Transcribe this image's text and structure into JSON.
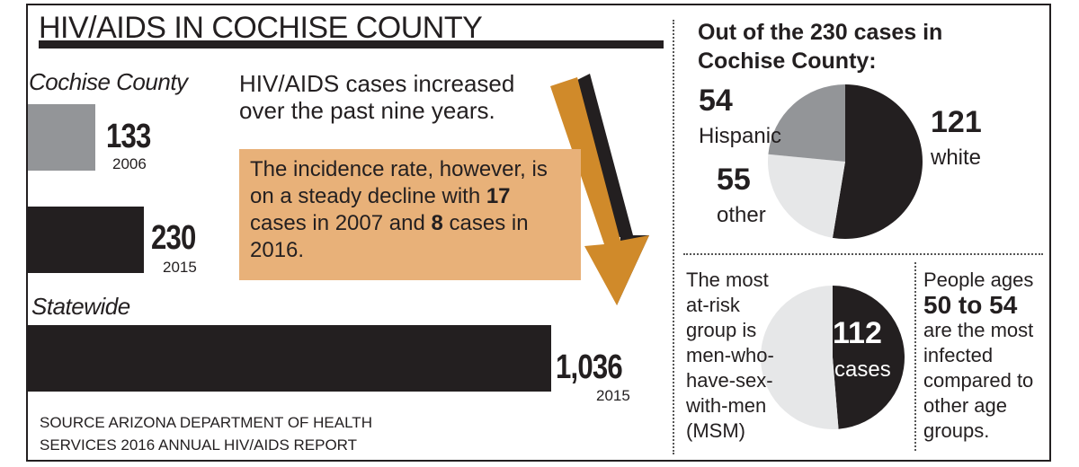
{
  "title": "HIV/AIDS IN COCHISE COUNTY",
  "colors": {
    "dark": "#231f20",
    "gray": "#939598",
    "light": "#e6e7e8",
    "callout": "#e8b179",
    "arrow": "#d08a2a"
  },
  "chart_data": [
    {
      "type": "bar",
      "orientation": "horizontal",
      "groups": [
        {
          "label": "Cochise County",
          "bars": [
            {
              "value": 133,
              "value_label": "133",
              "year": "2006",
              "color": "#939598"
            },
            {
              "value": 230,
              "value_label": "230",
              "year": "2015",
              "color": "#231f20"
            }
          ]
        },
        {
          "label": "Statewide",
          "bars": [
            {
              "value": 1036,
              "value_label": "1,036",
              "year": "2015",
              "color": "#231f20"
            }
          ]
        }
      ]
    },
    {
      "type": "pie",
      "title": "Out of the 230 cases in Cochise County:",
      "slices": [
        {
          "label": "white",
          "value": 121,
          "value_label": "121",
          "color": "#231f20"
        },
        {
          "label": "other",
          "value": 55,
          "value_label": "55",
          "color": "#e6e7e8"
        },
        {
          "label": "Hispanic",
          "value": 54,
          "value_label": "54",
          "color": "#939598"
        }
      ]
    },
    {
      "type": "pie",
      "slices": [
        {
          "label": "cases",
          "value": 112,
          "value_label": "112",
          "color": "#231f20"
        },
        {
          "label": "",
          "value": 118,
          "color": "#e6e7e8"
        }
      ]
    }
  ],
  "text": {
    "increase": "HIV/AIDS cases increased over the past nine years.",
    "callout_1": "The incidence rate, however, is on a steady decline with ",
    "callout_2": "17",
    "callout_3": " cases in 2007 and ",
    "callout_4": "8",
    "callout_5": " cases in 2016.",
    "risk": "The most at-risk group is men-who-have-sex-with-men (MSM)",
    "ages_1": "People ages",
    "ages_2": "50 to 54",
    "ages_3": "are the most infected compared to other age groups.",
    "source": "SOURCE ARIZONA DEPARTMENT OF HEALTH\nSERVICES 2016 ANNUAL HIV/AIDS REPORT"
  }
}
